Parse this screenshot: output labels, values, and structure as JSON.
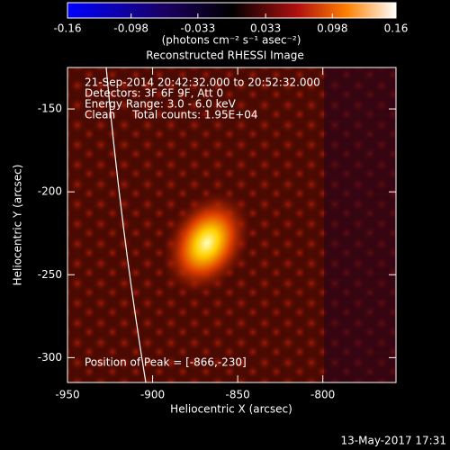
{
  "chart_data": {
    "type": "image",
    "title": "Reconstructed RHESSI Image",
    "colorbar": {
      "label": "(photons cm⁻² s⁻¹ asec⁻²)",
      "lim": [
        -0.16,
        0.16
      ],
      "ticks": [
        -0.16,
        -0.098,
        -0.033,
        0.033,
        0.098,
        0.16
      ]
    },
    "x_label": "Heliocentric X (arcsec)",
    "y_label": "Heliocentric Y (arcsec)",
    "xlim": [
      -950,
      -757
    ],
    "xticks": [
      -950,
      -900,
      -850,
      -800
    ],
    "ylim": [
      -315,
      -125
    ],
    "yticks": [
      -150,
      -200,
      -250,
      -300
    ],
    "annotations": [
      "21-Sep-2014 20:42:32.000 to 20:52:32.000",
      "Detectors: 3F 6F 9F, Att 0",
      "Energy Range: 3.0 - 6.0 keV",
      "Clean     Total counts: 1.95E+04",
      "Position of Peak = [-866,-230]"
    ],
    "timestamp": "13-May-2017 17:31"
  }
}
